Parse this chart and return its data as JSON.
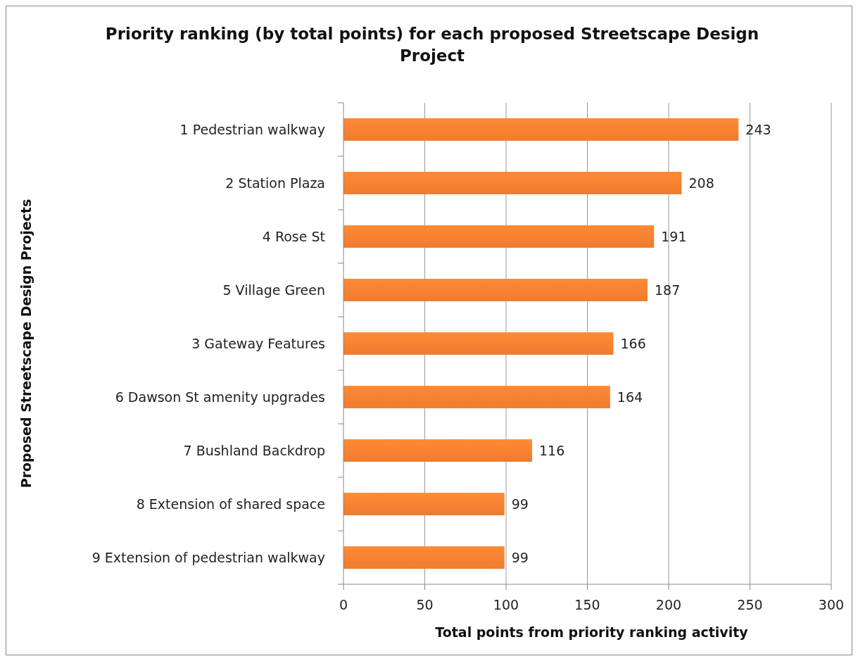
{
  "chart_data": {
    "type": "bar",
    "orientation": "horizontal",
    "title": "Priority ranking (by total points) for each proposed Streetscape Design Project",
    "xlabel": "Total points from priority ranking activity",
    "ylabel": "Proposed Streetscape Design Projects",
    "categories": [
      "1 Pedestrian walkway",
      "2 Station Plaza",
      "4 Rose St",
      "5 Village Green",
      "3 Gateway Features",
      "6 Dawson St amenity upgrades",
      "7 Bushland Backdrop",
      "8 Extension of shared space",
      "9 Extension of pedestrian walkway"
    ],
    "values": [
      243,
      208,
      191,
      187,
      166,
      164,
      116,
      99,
      99
    ],
    "color": "#ee7b2f",
    "xlim": [
      0,
      300
    ],
    "xticks": [
      0,
      50,
      100,
      150,
      200,
      250,
      300
    ],
    "grid": "x",
    "data_labels": true
  }
}
